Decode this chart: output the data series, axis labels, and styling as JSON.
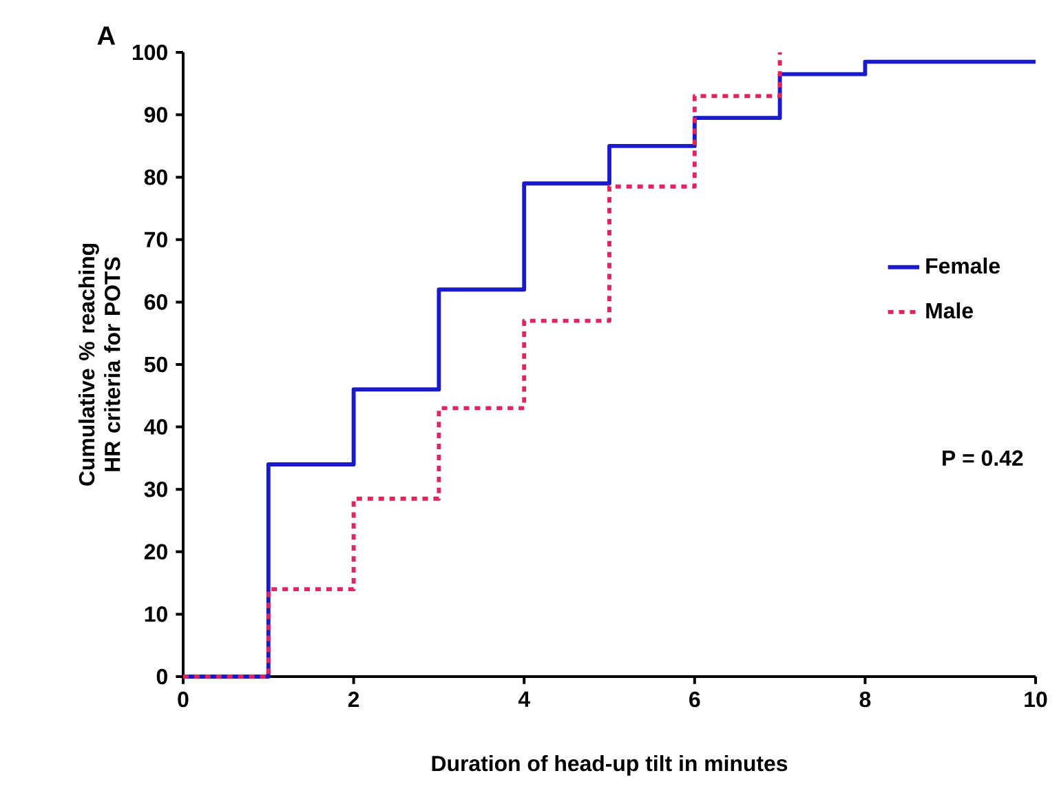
{
  "chart_data": {
    "type": "step",
    "xlabel": "Duration of head-up tilt in minutes",
    "ylabel": "Cumulative % reaching HR criteria for POTS",
    "xlim": [
      0,
      10
    ],
    "xticks": [
      0,
      2,
      4,
      6,
      8,
      10
    ],
    "ylim": [
      0,
      100
    ],
    "yticks": [
      0,
      10,
      20,
      30,
      40,
      50,
      60,
      70,
      80,
      90,
      100
    ],
    "legend": "right",
    "grid": false,
    "marker": "none",
    "annotations": [
      "A",
      "P = 0.42"
    ],
    "series": [
      {
        "name": "Female",
        "color": "#1a1acc",
        "line_style": "solid",
        "x": [
          0,
          1,
          2,
          3,
          4,
          5,
          6,
          7,
          8,
          10
        ],
        "values": [
          0,
          34,
          46,
          62,
          79,
          85,
          89.5,
          96.5,
          98.5,
          98.5
        ]
      },
      {
        "name": "Male",
        "color": "#e0245e",
        "line_style": "dashed",
        "x": [
          0,
          1,
          2,
          3,
          4,
          5,
          6,
          7
        ],
        "values": [
          0,
          14,
          28.5,
          43,
          57,
          78.5,
          93,
          100
        ]
      }
    ]
  }
}
